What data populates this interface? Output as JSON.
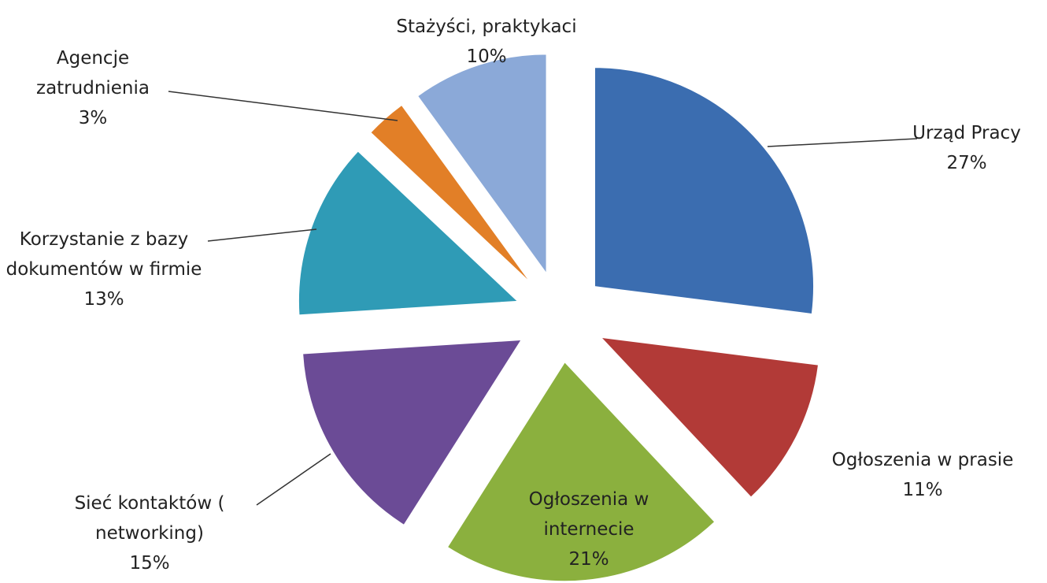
{
  "chart_data": {
    "type": "pie",
    "categories": [
      "Urząd Pracy",
      "Ogłoszenia w prasie",
      "Ogłoszenia w internecie",
      "Sieć kontaktów ( networking)",
      "Korzystanie z bazy dokumentów w firmie",
      "Agencje zatrudnienia",
      "Stażyści, praktykaci"
    ],
    "values": [
      27,
      11,
      21,
      15,
      13,
      3,
      10
    ],
    "value_labels": [
      "27%",
      "11%",
      "21%",
      "15%",
      "13%",
      "3%",
      "10%"
    ],
    "colors": [
      "#3b6db0",
      "#b23a37",
      "#8bb03e",
      "#6b4b96",
      "#2f9bb6",
      "#e27f27",
      "#8ba9d8"
    ]
  }
}
